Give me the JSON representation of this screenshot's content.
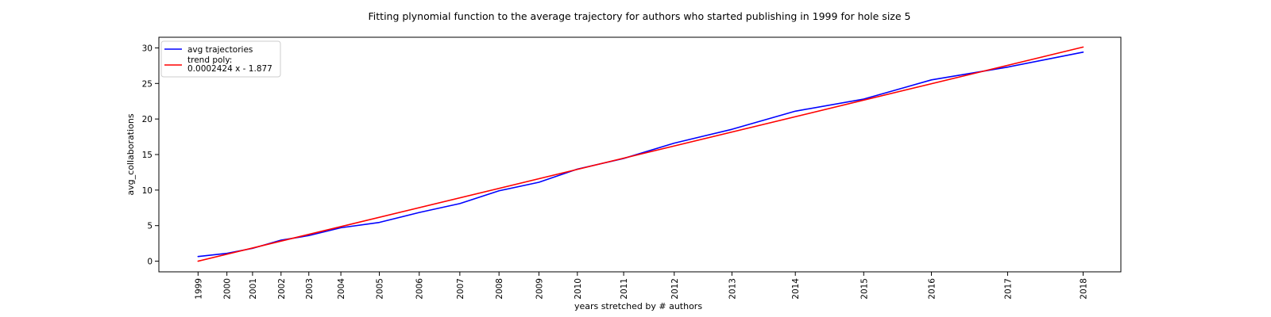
{
  "chart_data": {
    "type": "line",
    "title": "Fitting plynomial function to the average trajectory for authors who started publishing in 1999 for hole size 5",
    "xlabel": "years stretched by # authors",
    "ylabel": "avg_collaborations",
    "x_ticks": [
      {
        "label": "1999",
        "value": 7750
      },
      {
        "label": "2000",
        "value": 11800
      },
      {
        "label": "2001",
        "value": 15400
      },
      {
        "label": "2002",
        "value": 19400
      },
      {
        "label": "2003",
        "value": 23300
      },
      {
        "label": "2004",
        "value": 27800
      },
      {
        "label": "2005",
        "value": 33200
      },
      {
        "label": "2006",
        "value": 38800
      },
      {
        "label": "2007",
        "value": 44500
      },
      {
        "label": "2008",
        "value": 50000
      },
      {
        "label": "2009",
        "value": 55600
      },
      {
        "label": "2010",
        "value": 61000
      },
      {
        "label": "2011",
        "value": 67500
      },
      {
        "label": "2012",
        "value": 74600
      },
      {
        "label": "2013",
        "value": 82700
      },
      {
        "label": "2014",
        "value": 91600
      },
      {
        "label": "2015",
        "value": 101200
      },
      {
        "label": "2016",
        "value": 110700
      },
      {
        "label": "2017",
        "value": 121400
      },
      {
        "label": "2018",
        "value": 132000
      }
    ],
    "y_ticks": [
      0,
      5,
      10,
      15,
      20,
      25,
      30
    ],
    "xlim": [
      2250,
      137300
    ],
    "ylim": [
      -1.5,
      31.5
    ],
    "grid": false,
    "legend_position": "top-left",
    "series": [
      {
        "name": "avg trajectories",
        "color": "#0000ff",
        "points": [
          {
            "x": 7750,
            "y": 0.65
          },
          {
            "x": 11800,
            "y": 1.1
          },
          {
            "x": 15400,
            "y": 1.8
          },
          {
            "x": 19400,
            "y": 2.95
          },
          {
            "x": 23300,
            "y": 3.6
          },
          {
            "x": 27800,
            "y": 4.7
          },
          {
            "x": 33200,
            "y": 5.45
          },
          {
            "x": 38800,
            "y": 6.85
          },
          {
            "x": 44500,
            "y": 8.1
          },
          {
            "x": 50000,
            "y": 9.9
          },
          {
            "x": 55600,
            "y": 11.1
          },
          {
            "x": 61000,
            "y": 12.95
          },
          {
            "x": 67500,
            "y": 14.45
          },
          {
            "x": 74600,
            "y": 16.6
          },
          {
            "x": 82700,
            "y": 18.55
          },
          {
            "x": 91600,
            "y": 21.1
          },
          {
            "x": 101200,
            "y": 22.8
          },
          {
            "x": 110700,
            "y": 25.5
          },
          {
            "x": 121400,
            "y": 27.3
          },
          {
            "x": 132000,
            "y": 29.4
          }
        ]
      },
      {
        "name": "trend poly:\n0.0002424 x - 1.877",
        "color": "#ff0000",
        "points": [
          {
            "x": 7750,
            "y": 0.0
          },
          {
            "x": 132000,
            "y": 30.12
          }
        ]
      }
    ]
  }
}
